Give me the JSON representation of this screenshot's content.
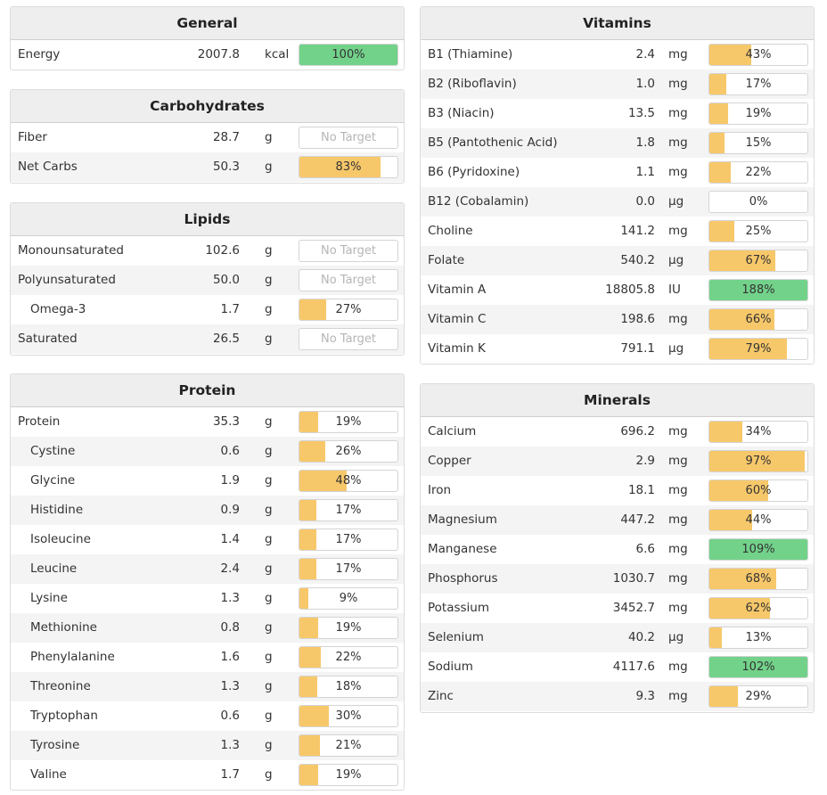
{
  "colors": {
    "bar_partial": "#f7c86a",
    "bar_full": "#72d28a",
    "header_bg": "#eeeeee",
    "row_alt": "#f4f4f4"
  },
  "general": {
    "title": "General",
    "rows": [
      {
        "name": "Energy",
        "amount": "2007.8",
        "unit": "kcal",
        "percent": "100%",
        "fill": 1.0,
        "status": "full",
        "indent": false
      }
    ]
  },
  "carbohydrates": {
    "title": "Carbohydrates",
    "rows": [
      {
        "name": "Fiber",
        "amount": "28.7",
        "unit": "g",
        "percent": "No Target",
        "fill": 0,
        "status": "none",
        "indent": false
      },
      {
        "name": "Net Carbs",
        "amount": "50.3",
        "unit": "g",
        "percent": "83%",
        "fill": 0.83,
        "status": "partial",
        "indent": false
      }
    ]
  },
  "lipids": {
    "title": "Lipids",
    "rows": [
      {
        "name": "Monounsaturated",
        "amount": "102.6",
        "unit": "g",
        "percent": "No Target",
        "fill": 0,
        "status": "none",
        "indent": false
      },
      {
        "name": "Polyunsaturated",
        "amount": "50.0",
        "unit": "g",
        "percent": "No Target",
        "fill": 0,
        "status": "none",
        "indent": false
      },
      {
        "name": "Omega-3",
        "amount": "1.7",
        "unit": "g",
        "percent": "27%",
        "fill": 0.27,
        "status": "partial",
        "indent": true
      },
      {
        "name": "Saturated",
        "amount": "26.5",
        "unit": "g",
        "percent": "No Target",
        "fill": 0,
        "status": "none",
        "indent": false
      }
    ]
  },
  "protein": {
    "title": "Protein",
    "rows": [
      {
        "name": "Protein",
        "amount": "35.3",
        "unit": "g",
        "percent": "19%",
        "fill": 0.19,
        "status": "partial",
        "indent": false
      },
      {
        "name": "Cystine",
        "amount": "0.6",
        "unit": "g",
        "percent": "26%",
        "fill": 0.26,
        "status": "partial",
        "indent": true
      },
      {
        "name": "Glycine",
        "amount": "1.9",
        "unit": "g",
        "percent": "48%",
        "fill": 0.48,
        "status": "partial",
        "indent": true
      },
      {
        "name": "Histidine",
        "amount": "0.9",
        "unit": "g",
        "percent": "17%",
        "fill": 0.17,
        "status": "partial",
        "indent": true
      },
      {
        "name": "Isoleucine",
        "amount": "1.4",
        "unit": "g",
        "percent": "17%",
        "fill": 0.17,
        "status": "partial",
        "indent": true
      },
      {
        "name": "Leucine",
        "amount": "2.4",
        "unit": "g",
        "percent": "17%",
        "fill": 0.17,
        "status": "partial",
        "indent": true
      },
      {
        "name": "Lysine",
        "amount": "1.3",
        "unit": "g",
        "percent": "9%",
        "fill": 0.09,
        "status": "partial",
        "indent": true
      },
      {
        "name": "Methionine",
        "amount": "0.8",
        "unit": "g",
        "percent": "19%",
        "fill": 0.19,
        "status": "partial",
        "indent": true
      },
      {
        "name": "Phenylalanine",
        "amount": "1.6",
        "unit": "g",
        "percent": "22%",
        "fill": 0.22,
        "status": "partial",
        "indent": true
      },
      {
        "name": "Threonine",
        "amount": "1.3",
        "unit": "g",
        "percent": "18%",
        "fill": 0.18,
        "status": "partial",
        "indent": true
      },
      {
        "name": "Tryptophan",
        "amount": "0.6",
        "unit": "g",
        "percent": "30%",
        "fill": 0.3,
        "status": "partial",
        "indent": true
      },
      {
        "name": "Tyrosine",
        "amount": "1.3",
        "unit": "g",
        "percent": "21%",
        "fill": 0.21,
        "status": "partial",
        "indent": true
      },
      {
        "name": "Valine",
        "amount": "1.7",
        "unit": "g",
        "percent": "19%",
        "fill": 0.19,
        "status": "partial",
        "indent": true
      }
    ]
  },
  "vitamins": {
    "title": "Vitamins",
    "rows": [
      {
        "name": "B1 (Thiamine)",
        "amount": "2.4",
        "unit": "mg",
        "percent": "43%",
        "fill": 0.43,
        "status": "partial",
        "indent": false
      },
      {
        "name": "B2 (Riboflavin)",
        "amount": "1.0",
        "unit": "mg",
        "percent": "17%",
        "fill": 0.17,
        "status": "partial",
        "indent": false
      },
      {
        "name": "B3 (Niacin)",
        "amount": "13.5",
        "unit": "mg",
        "percent": "19%",
        "fill": 0.19,
        "status": "partial",
        "indent": false
      },
      {
        "name": "B5 (Pantothenic Acid)",
        "amount": "1.8",
        "unit": "mg",
        "percent": "15%",
        "fill": 0.15,
        "status": "partial",
        "indent": false
      },
      {
        "name": "B6 (Pyridoxine)",
        "amount": "1.1",
        "unit": "mg",
        "percent": "22%",
        "fill": 0.22,
        "status": "partial",
        "indent": false
      },
      {
        "name": "B12 (Cobalamin)",
        "amount": "0.0",
        "unit": "µg",
        "percent": "0%",
        "fill": 0,
        "status": "partial",
        "indent": false
      },
      {
        "name": "Choline",
        "amount": "141.2",
        "unit": "mg",
        "percent": "25%",
        "fill": 0.25,
        "status": "partial",
        "indent": false
      },
      {
        "name": "Folate",
        "amount": "540.2",
        "unit": "µg",
        "percent": "67%",
        "fill": 0.67,
        "status": "partial",
        "indent": false
      },
      {
        "name": "Vitamin A",
        "amount": "18805.8",
        "unit": "IU",
        "percent": "188%",
        "fill": 1.0,
        "status": "full",
        "indent": false
      },
      {
        "name": "Vitamin C",
        "amount": "198.6",
        "unit": "mg",
        "percent": "66%",
        "fill": 0.66,
        "status": "partial",
        "indent": false
      },
      {
        "name": "Vitamin K",
        "amount": "791.1",
        "unit": "µg",
        "percent": "79%",
        "fill": 0.79,
        "status": "partial",
        "indent": false
      }
    ]
  },
  "minerals": {
    "title": "Minerals",
    "rows": [
      {
        "name": "Calcium",
        "amount": "696.2",
        "unit": "mg",
        "percent": "34%",
        "fill": 0.34,
        "status": "partial",
        "indent": false
      },
      {
        "name": "Copper",
        "amount": "2.9",
        "unit": "mg",
        "percent": "97%",
        "fill": 0.97,
        "status": "partial",
        "indent": false
      },
      {
        "name": "Iron",
        "amount": "18.1",
        "unit": "mg",
        "percent": "60%",
        "fill": 0.6,
        "status": "partial",
        "indent": false
      },
      {
        "name": "Magnesium",
        "amount": "447.2",
        "unit": "mg",
        "percent": "44%",
        "fill": 0.44,
        "status": "partial",
        "indent": false
      },
      {
        "name": "Manganese",
        "amount": "6.6",
        "unit": "mg",
        "percent": "109%",
        "fill": 1.0,
        "status": "full",
        "indent": false
      },
      {
        "name": "Phosphorus",
        "amount": "1030.7",
        "unit": "mg",
        "percent": "68%",
        "fill": 0.68,
        "status": "partial",
        "indent": false
      },
      {
        "name": "Potassium",
        "amount": "3452.7",
        "unit": "mg",
        "percent": "62%",
        "fill": 0.62,
        "status": "partial",
        "indent": false
      },
      {
        "name": "Selenium",
        "amount": "40.2",
        "unit": "µg",
        "percent": "13%",
        "fill": 0.13,
        "status": "partial",
        "indent": false
      },
      {
        "name": "Sodium",
        "amount": "4117.6",
        "unit": "mg",
        "percent": "102%",
        "fill": 1.0,
        "status": "full",
        "indent": false
      },
      {
        "name": "Zinc",
        "amount": "9.3",
        "unit": "mg",
        "percent": "29%",
        "fill": 0.29,
        "status": "partial",
        "indent": false
      }
    ]
  }
}
